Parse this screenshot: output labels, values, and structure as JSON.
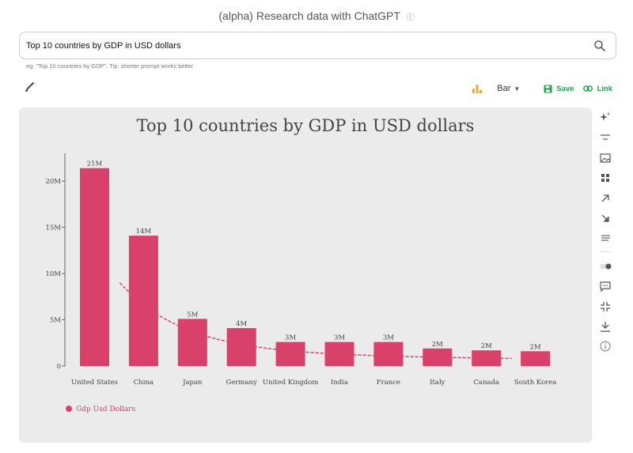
{
  "header": {
    "title": "(alpha) Research data with ChatGPT",
    "info_icon": "info-icon"
  },
  "search": {
    "value": "Top 10 countries by GDP in USD dollars",
    "placeholder": ""
  },
  "hint": "eg: \"Top 10 countries by GDP\". Tip: shorter prompt works better",
  "toolbar": {
    "chart_type": "Bar",
    "save_label": "Save",
    "link_label": "Link"
  },
  "colors": {
    "bar": "#d9416b",
    "accent_green": "#1aa34a",
    "chart_icon": "#f0a830",
    "card_bg": "#ebebeb"
  },
  "side_tools": [
    "sparkle-icon",
    "sort-icon",
    "image-icon",
    "grid-icon",
    "arrow-up-right-icon",
    "arrow-down-right-icon",
    "align-icon",
    "toggle-icon",
    "comment-icon",
    "shrink-icon",
    "download-icon",
    "info-icon"
  ],
  "chart_data": {
    "type": "bar",
    "title": "Top 10 countries by GDP in USD dollars",
    "categories": [
      "United States",
      "China",
      "Japan",
      "Germany",
      "United Kingdom",
      "India",
      "France",
      "Italy",
      "Canada",
      "South Korea"
    ],
    "series": [
      {
        "name": "Gdp Usd Dollars",
        "values": [
          21.4,
          14.1,
          5.1,
          4.1,
          2.6,
          2.6,
          2.6,
          1.9,
          1.7,
          1.6
        ]
      }
    ],
    "data_labels": [
      "21M",
      "14M",
      "5M",
      "4M",
      "3M",
      "3M",
      "3M",
      "2M",
      "2M",
      "2M"
    ],
    "y_ticks": [
      0,
      5,
      10,
      15,
      20
    ],
    "y_tick_labels": [
      "0",
      "5M",
      "10M",
      "15M",
      "20M"
    ],
    "ylim": [
      0,
      23
    ],
    "trendline": "dashed",
    "legend": "bottom-left",
    "grid": false
  }
}
